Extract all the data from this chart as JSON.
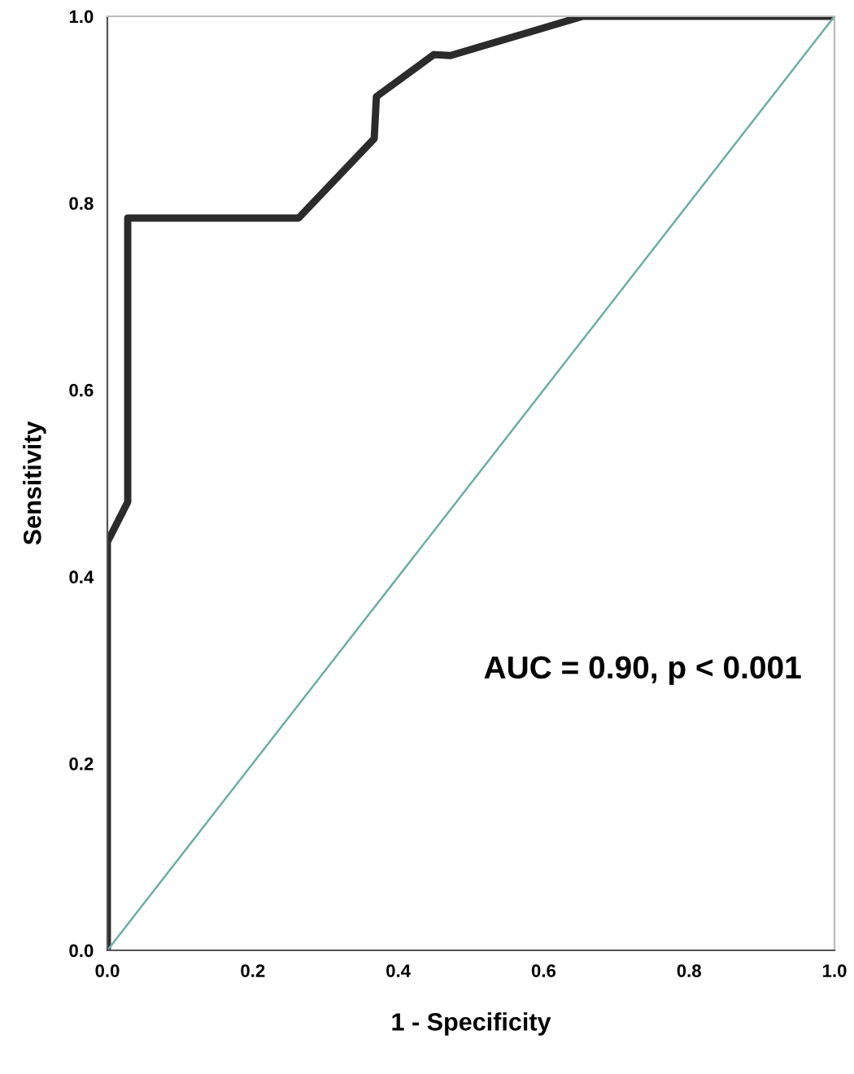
{
  "chart_data": {
    "type": "line",
    "xlabel": "1 - Specificity",
    "ylabel": "Sensitivity",
    "xlim": [
      0,
      1
    ],
    "ylim": [
      0,
      1
    ],
    "xticks": [
      {
        "value": 0,
        "label": "0.0"
      },
      0.2,
      0.4,
      0.6,
      0.8,
      {
        "value": 1,
        "label": "1.0"
      }
    ],
    "yticks": [
      {
        "value": 0,
        "label": "0.0"
      },
      0.2,
      0.4,
      0.6,
      0.8,
      {
        "value": 1,
        "label": "1.0"
      }
    ],
    "grid": false,
    "marker": "none",
    "line_style": "solid",
    "series": [
      {
        "color": "#2b2b2b",
        "x": [
          0,
          0,
          0.028,
          0.028,
          0.263,
          0.367,
          0.37,
          0.449,
          0.472,
          0.654,
          1
        ],
        "values": [
          0,
          0.437,
          0.48,
          0.784,
          0.784,
          0.869,
          0.914,
          0.959,
          0.958,
          1,
          1
        ]
      },
      {
        "color": "#6aaea6",
        "x": [
          0,
          1
        ],
        "values": [
          0,
          1
        ]
      }
    ],
    "annotations": [
      "AUC = 0.90, p < 0.001"
    ]
  }
}
